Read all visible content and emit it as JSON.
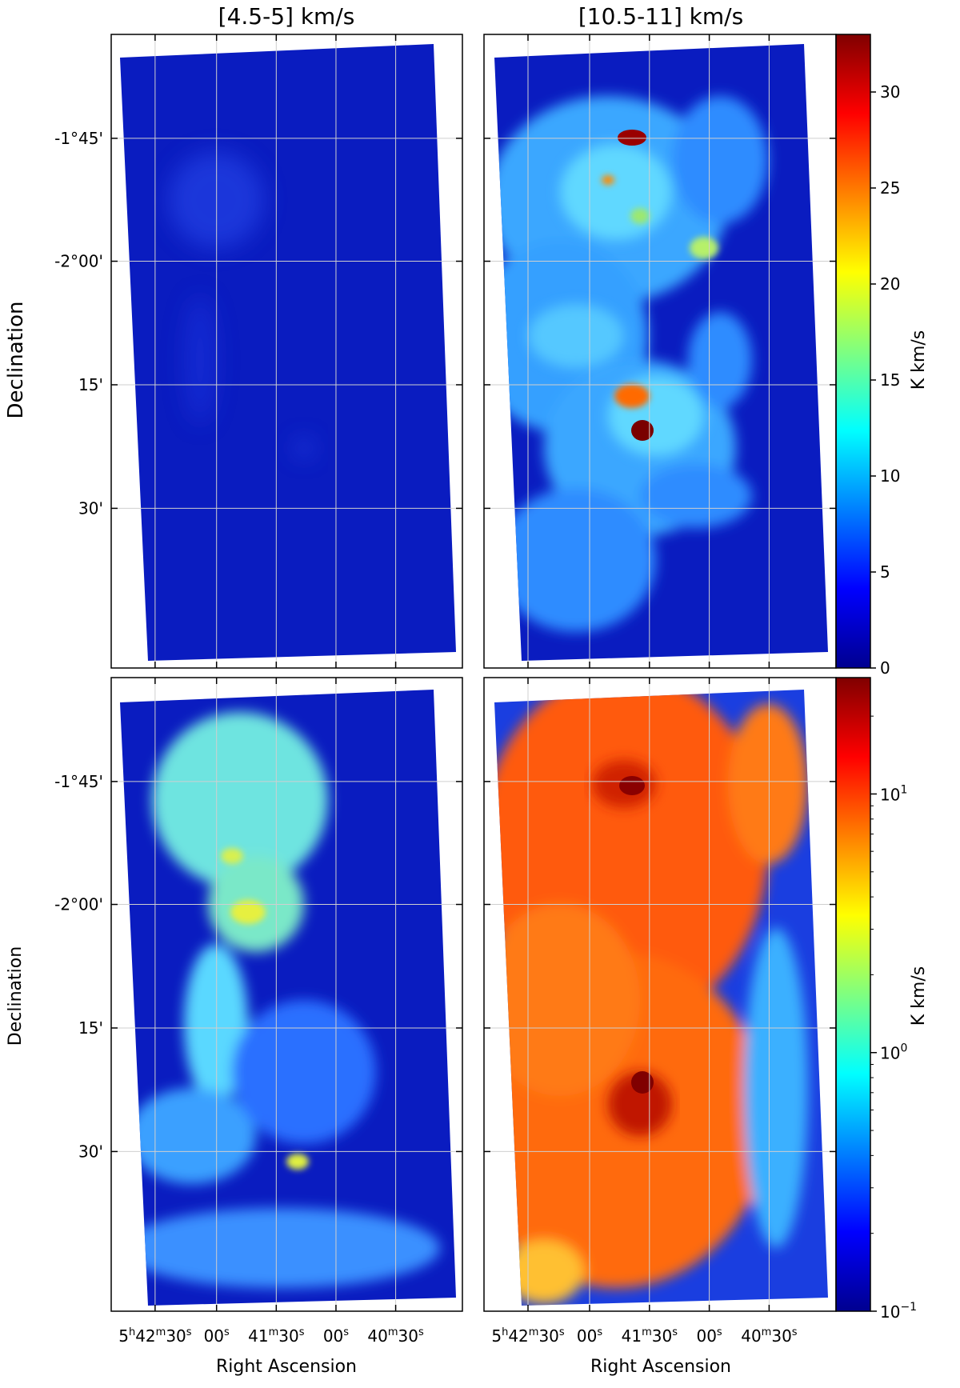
{
  "figure": {
    "columns": [
      {
        "title": "[4.5-5] km/s"
      },
      {
        "title": "[10.5-11] km/s"
      }
    ],
    "y_axis_label": "Declination",
    "x_axis_label": "Right Ascension",
    "dec_ticks": [
      "-1°45'",
      "-2°00'",
      "15'",
      "30'"
    ],
    "ra_ticks": [
      {
        "main": "5",
        "sup1": "h",
        "mid": "42",
        "sup2": "m",
        "tail": "30",
        "sup3": "s"
      },
      {
        "main": "",
        "sup1": "",
        "mid": "",
        "sup2": "",
        "tail": "00",
        "sup3": "s"
      },
      {
        "main": "",
        "sup1": "",
        "mid": "41",
        "sup2": "m",
        "tail": "30",
        "sup3": "s"
      },
      {
        "main": "",
        "sup1": "",
        "mid": "",
        "sup2": "",
        "tail": "00",
        "sup3": "s"
      },
      {
        "main": "",
        "sup1": "",
        "mid": "40",
        "sup2": "m",
        "tail": "30",
        "sup3": "s"
      }
    ],
    "colorbars": [
      {
        "label": "K km/s",
        "scale": "linear",
        "ticks": [
          "30",
          "25",
          "20",
          "15",
          "10",
          "5",
          "0"
        ]
      },
      {
        "label": "K km/s",
        "scale": "log",
        "ticks": [
          {
            "base": "10",
            "exp": "1"
          },
          {
            "base": "10",
            "exp": "0"
          },
          {
            "base": "10",
            "exp": "−1"
          }
        ]
      }
    ],
    "colormap": "jet",
    "colors": {
      "jet_dark_blue": "#00008f",
      "jet_blue": "#0000ff",
      "jet_cyan": "#00ffff",
      "jet_yellow": "#ffff00",
      "jet_red": "#ff0000",
      "jet_dark_red": "#800000"
    }
  }
}
